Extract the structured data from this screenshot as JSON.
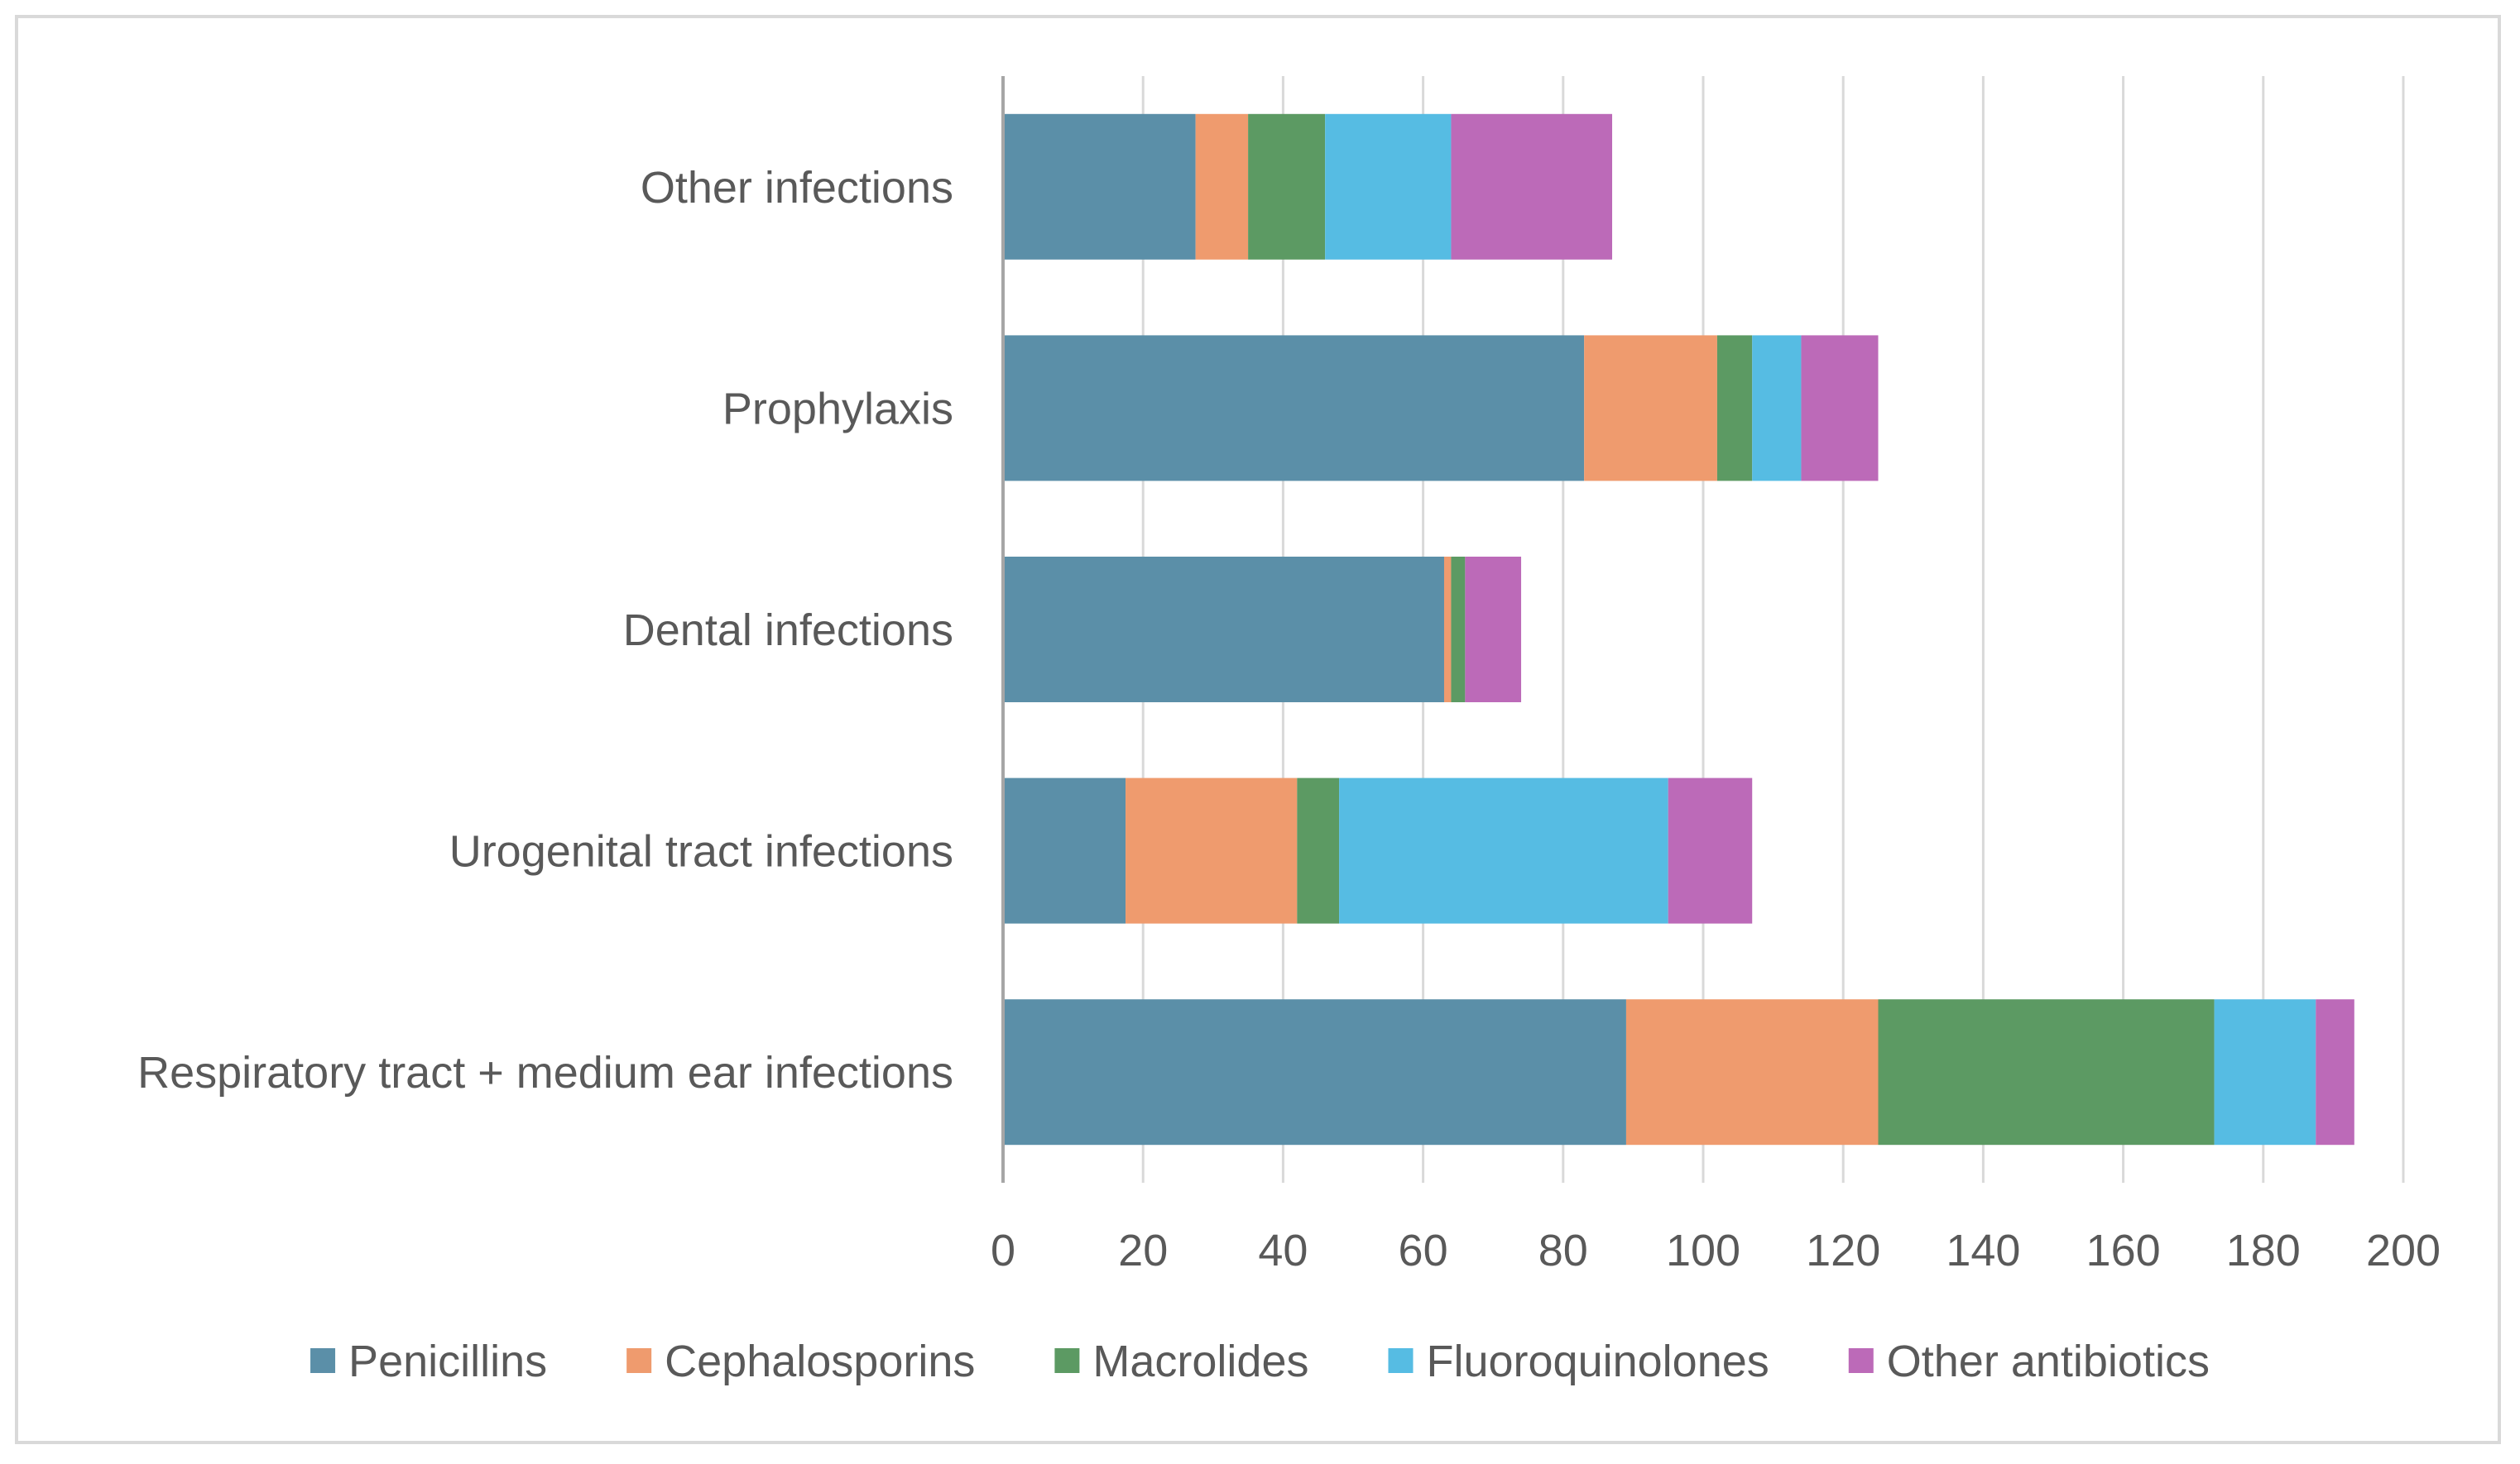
{
  "chart_data": {
    "type": "bar",
    "orientation": "horizontal",
    "stacked": true,
    "categories": [
      "Respiratory tract + medium ear infections",
      "Urogenital tract infections",
      "Dental infections",
      "Prophylaxis",
      "Other infections"
    ],
    "series": [
      {
        "name": "Penicillins",
        "color": "#5b8fa8",
        "values": [
          89,
          17.5,
          63,
          83,
          27.5
        ]
      },
      {
        "name": "Cephalosporins",
        "color": "#ef9b6e",
        "values": [
          36,
          24.5,
          1,
          19,
          7.5
        ]
      },
      {
        "name": "Macrolides",
        "color": "#5c9a63",
        "values": [
          48,
          6,
          2,
          5,
          11
        ]
      },
      {
        "name": "Fluoroquinolones",
        "color": "#56bce3",
        "values": [
          14.5,
          47,
          0,
          7,
          18
        ]
      },
      {
        "name": "Other antibiotics",
        "color": "#bc6ab8",
        "values": [
          5.5,
          12,
          8,
          11,
          23
        ]
      }
    ],
    "xlim": [
      0,
      200
    ],
    "xticks": [
      "0",
      "20",
      "40",
      "60",
      "80",
      "100",
      "120",
      "140",
      "160",
      "180",
      "200"
    ],
    "xticks_values": [
      0,
      20,
      40,
      60,
      80,
      100,
      120,
      140,
      160,
      180,
      200
    ],
    "grid": true,
    "legend": "bottom",
    "title": "",
    "xlabel": "",
    "ylabel": ""
  }
}
